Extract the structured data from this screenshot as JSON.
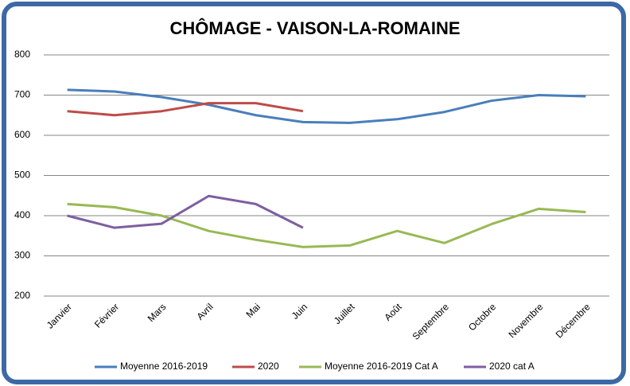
{
  "chart_data": {
    "type": "line",
    "title": "CHÔMAGE - VAISON-LA-ROMAINE",
    "categories": [
      "Janvier",
      "Février",
      "Mars",
      "Avril",
      "Mai",
      "Juin",
      "Juillet",
      "Août",
      "Septembre",
      "Octobre",
      "Novembre",
      "Décembre"
    ],
    "series": [
      {
        "name": "Moyenne 2016-2019",
        "color": "#4a7ebb",
        "values": [
          713,
          709,
          695,
          676,
          650,
          633,
          631,
          640,
          658,
          686,
          700,
          697
        ]
      },
      {
        "name": "2020",
        "color": "#be4b48",
        "values": [
          660,
          650,
          660,
          680,
          680,
          660,
          null,
          null,
          null,
          null,
          null,
          null
        ]
      },
      {
        "name": "Moyenne 2016-2019 Cat A",
        "color": "#98b954",
        "values": [
          429,
          421,
          400,
          362,
          340,
          322,
          326,
          362,
          332,
          379,
          417,
          409
        ]
      },
      {
        "name": "2020 cat A",
        "color": "#7d5fa0",
        "values": [
          400,
          370,
          380,
          449,
          429,
          370,
          null,
          null,
          null,
          null,
          null,
          null
        ]
      }
    ],
    "ylim": [
      200,
      800
    ],
    "yticks": [
      200,
      300,
      400,
      500,
      600,
      700,
      800
    ],
    "grid": true,
    "legend": "bottom"
  }
}
